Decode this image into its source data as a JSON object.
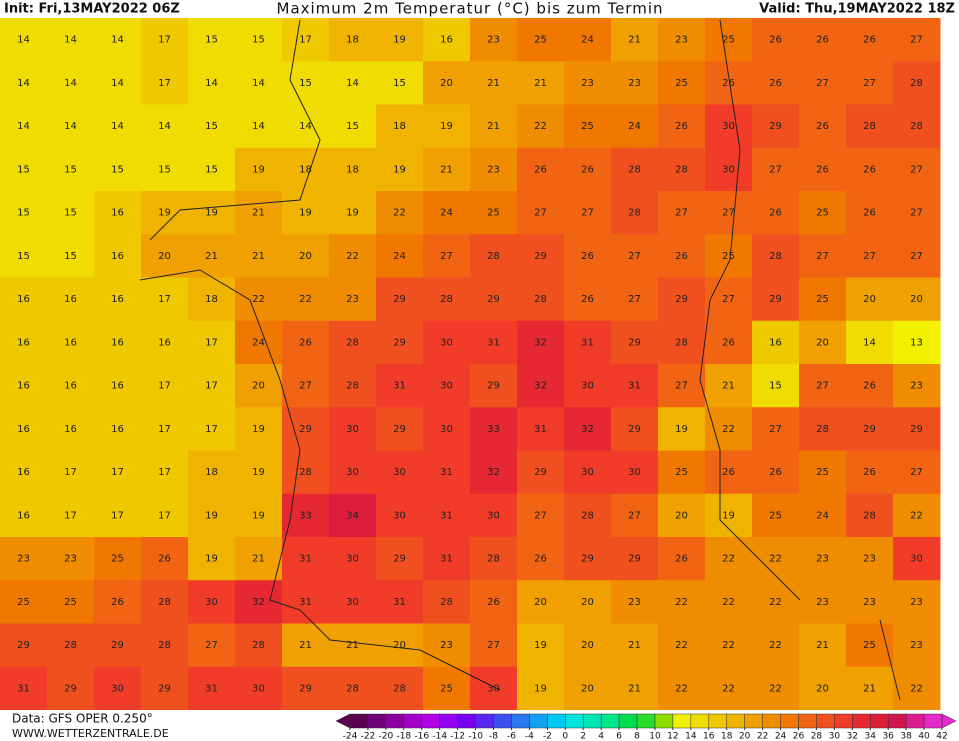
{
  "header": {
    "init": "Init: Fri,13MAY2022 06Z",
    "title": "Maximum 2m Temperatur (°C) bis zum Termin",
    "valid": "Valid: Thu,19MAY2022 18Z"
  },
  "footer": {
    "data": "Data: GFS OPER 0.250°",
    "site": "WWW.WETTERZENTRALE.DE"
  },
  "colorbar": {
    "ticks": [
      -24,
      -22,
      -20,
      -18,
      -16,
      -14,
      -12,
      -10,
      -8,
      -6,
      -4,
      -2,
      0,
      2,
      4,
      6,
      8,
      10,
      12,
      14,
      16,
      18,
      20,
      22,
      24,
      26,
      28,
      30,
      32,
      34,
      36,
      38,
      40,
      42
    ],
    "colors": [
      "#5a0050",
      "#6e0078",
      "#8c00a0",
      "#a000c8",
      "#b400e6",
      "#9600f0",
      "#7800f0",
      "#5a28f0",
      "#3c50f0",
      "#2878f0",
      "#14a0f0",
      "#00c8f0",
      "#00e6dc",
      "#00e6b4",
      "#00e68c",
      "#00dc50",
      "#28dc28",
      "#8cdc00",
      "#f0f000",
      "#f0dc00",
      "#f0c800",
      "#f0b400",
      "#f0a000",
      "#f08c00",
      "#f07800",
      "#f06414",
      "#f0501e",
      "#f03c28",
      "#e62832",
      "#dc1e3c",
      "#d21450",
      "#dc1e8c",
      "#e628c8"
    ]
  },
  "map": {
    "rows": [
      [
        14,
        14,
        14,
        17,
        15,
        15,
        17,
        18,
        19,
        16,
        23,
        25,
        24,
        21,
        23,
        25,
        26,
        26,
        26,
        27
      ],
      [
        14,
        14,
        14,
        17,
        14,
        14,
        15,
        14,
        15,
        20,
        21,
        21,
        23,
        23,
        25,
        26,
        26,
        27,
        27,
        28
      ],
      [
        14,
        14,
        14,
        14,
        15,
        14,
        14,
        15,
        18,
        19,
        21,
        22,
        25,
        24,
        26,
        30,
        29,
        26,
        28,
        28
      ],
      [
        15,
        15,
        15,
        15,
        15,
        19,
        18,
        18,
        19,
        21,
        23,
        26,
        26,
        28,
        28,
        30,
        27,
        26,
        26,
        27
      ],
      [
        15,
        15,
        16,
        19,
        19,
        21,
        19,
        19,
        22,
        24,
        25,
        27,
        27,
        28,
        27,
        27,
        26,
        25,
        26,
        27
      ],
      [
        15,
        15,
        16,
        20,
        21,
        21,
        20,
        22,
        24,
        27,
        28,
        29,
        26,
        27,
        26,
        25,
        28,
        27,
        27,
        27
      ],
      [
        16,
        16,
        16,
        17,
        18,
        22,
        22,
        23,
        29,
        28,
        29,
        28,
        26,
        27,
        29,
        27,
        29,
        25,
        20,
        20
      ],
      [
        16,
        16,
        16,
        16,
        17,
        24,
        26,
        28,
        29,
        30,
        31,
        32,
        31,
        29,
        28,
        26,
        16,
        20,
        14,
        13
      ],
      [
        16,
        16,
        16,
        17,
        17,
        20,
        27,
        28,
        31,
        30,
        29,
        32,
        30,
        31,
        27,
        21,
        15,
        27,
        26,
        23
      ],
      [
        16,
        16,
        16,
        17,
        17,
        19,
        29,
        30,
        29,
        30,
        33,
        31,
        32,
        29,
        19,
        22,
        27,
        28,
        29,
        29
      ],
      [
        16,
        17,
        17,
        17,
        18,
        19,
        28,
        30,
        30,
        31,
        32,
        29,
        30,
        30,
        25,
        26,
        26,
        25,
        26,
        27
      ],
      [
        16,
        17,
        17,
        17,
        19,
        19,
        33,
        34,
        30,
        31,
        30,
        27,
        28,
        27,
        20,
        19,
        25,
        24,
        28,
        22
      ],
      [
        23,
        23,
        25,
        26,
        19,
        21,
        31,
        30,
        29,
        31,
        28,
        26,
        29,
        29,
        26,
        22,
        22,
        23,
        23,
        30
      ],
      [
        25,
        25,
        26,
        28,
        30,
        32,
        31,
        30,
        31,
        28,
        26,
        20,
        20,
        23,
        22,
        22,
        22,
        23,
        23,
        23
      ],
      [
        29,
        28,
        29,
        28,
        27,
        28,
        21,
        21,
        20,
        23,
        27,
        19,
        20,
        21,
        22,
        22,
        22,
        21,
        25,
        23
      ],
      [
        31,
        29,
        30,
        29,
        31,
        30,
        29,
        28,
        28,
        25,
        30,
        19,
        20,
        21,
        22,
        22,
        22,
        20,
        21,
        22
      ]
    ]
  }
}
